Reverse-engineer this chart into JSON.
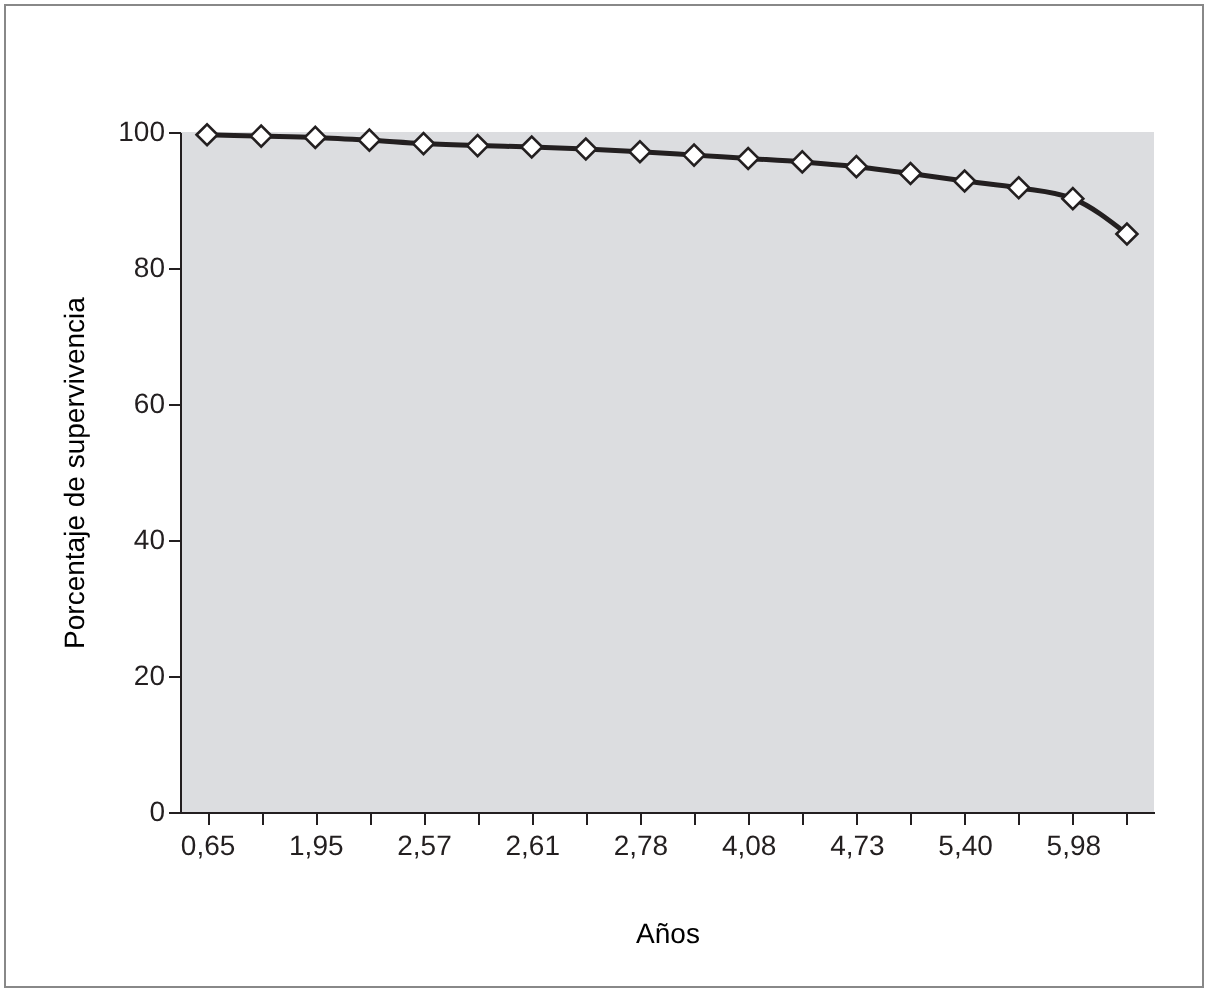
{
  "chart_data": {
    "type": "line",
    "xlabel": "Años",
    "ylabel": "Porcentaje de supervivencia",
    "categories": [
      "0,65",
      null,
      "1,95",
      null,
      "2,57",
      null,
      "2,61",
      null,
      "2,78",
      null,
      "4,08",
      null,
      "4,73",
      null,
      "5,40",
      null,
      "5,98",
      null
    ],
    "series": [
      {
        "color": "#231f20",
        "values": [
          99.6,
          99.4,
          99.2,
          98.8,
          98.3,
          98.0,
          97.8,
          97.5,
          97.1,
          96.6,
          96.1,
          95.6,
          94.9,
          93.9,
          92.8,
          91.8,
          90.2,
          85.0
        ]
      }
    ],
    "ylim": [
      0,
      100
    ],
    "yticks": [
      0,
      20,
      40,
      60,
      80,
      100
    ],
    "marker": "diamond",
    "line_style": "solid",
    "grid": false
  }
}
